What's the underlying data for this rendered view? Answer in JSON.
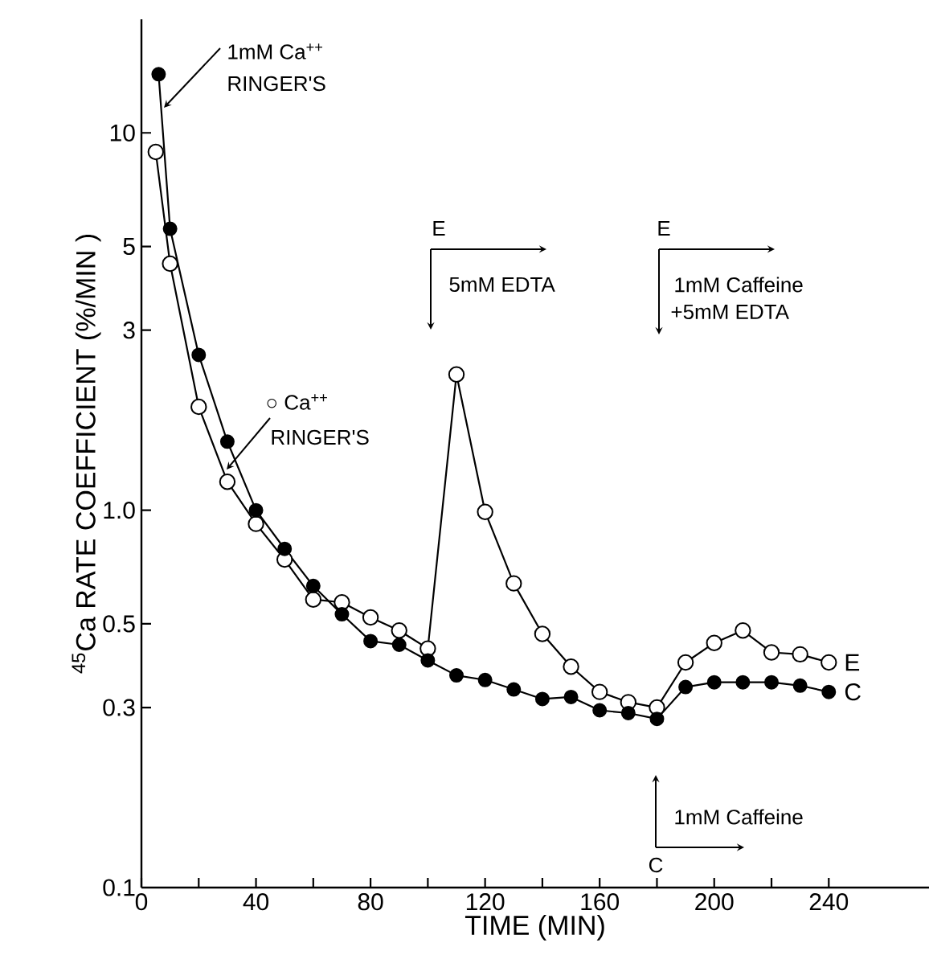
{
  "chart_data": {
    "type": "line",
    "xlabel": "TIME (MIN)",
    "ylabel": "$^{45}$Ca RATE COEFFICIENT (%/MIN )",
    "log": "y",
    "xlim": [
      0,
      275
    ],
    "ylim": [
      0.1,
      20
    ],
    "xticks": [
      0,
      {
        "value": 20,
        "label": null
      },
      40,
      {
        "value": 60,
        "label": null
      },
      80,
      {
        "value": 100,
        "label": null
      },
      120,
      {
        "value": 140,
        "label": null
      },
      160,
      {
        "value": 180,
        "label": null
      },
      200,
      {
        "value": 220,
        "label": null
      },
      240
    ],
    "yticks": [
      0.1,
      0.3,
      0.5,
      {
        "value": 1,
        "label": "1.0"
      },
      3,
      5,
      10
    ],
    "line_style": "solid",
    "marker": "circle",
    "series": [
      {
        "name": "E",
        "color": "#000000",
        "x": [
          5,
          10,
          20,
          30,
          40,
          50,
          60,
          70,
          80,
          90,
          100,
          110,
          120,
          130,
          140,
          150,
          160,
          170,
          180,
          190,
          200,
          210,
          220,
          230,
          240
        ],
        "values": [
          8.9,
          4.5,
          1.88,
          1.19,
          0.92,
          0.74,
          0.58,
          0.57,
          0.52,
          0.48,
          0.43,
          2.29,
          0.99,
          0.64,
          0.47,
          0.385,
          0.33,
          0.31,
          0.3,
          0.395,
          0.445,
          0.48,
          0.42,
          0.415,
          0.395
        ]
      },
      {
        "name": "C",
        "color": "#000000",
        "x": [
          6,
          10,
          20,
          30,
          40,
          50,
          60,
          70,
          80,
          90,
          100,
          110,
          120,
          130,
          140,
          150,
          160,
          170,
          180,
          190,
          200,
          210,
          220,
          230,
          240
        ],
        "values": [
          14.3,
          5.57,
          2.58,
          1.52,
          1.0,
          0.79,
          0.63,
          0.53,
          0.45,
          0.44,
          0.4,
          0.365,
          0.355,
          0.335,
          0.316,
          0.32,
          0.295,
          0.29,
          0.28,
          0.34,
          0.35,
          0.35,
          0.35,
          0.343,
          0.33
        ]
      }
    ],
    "annotations": [
      "1mM Ca$^{++}$",
      "RINGER'S",
      "○ Ca$^{++}$",
      "RINGER'S",
      "E",
      "5mM EDTA",
      "E",
      "1mM Caffeine",
      "+5mM EDTA",
      "1mM Caffeine",
      "C"
    ]
  }
}
